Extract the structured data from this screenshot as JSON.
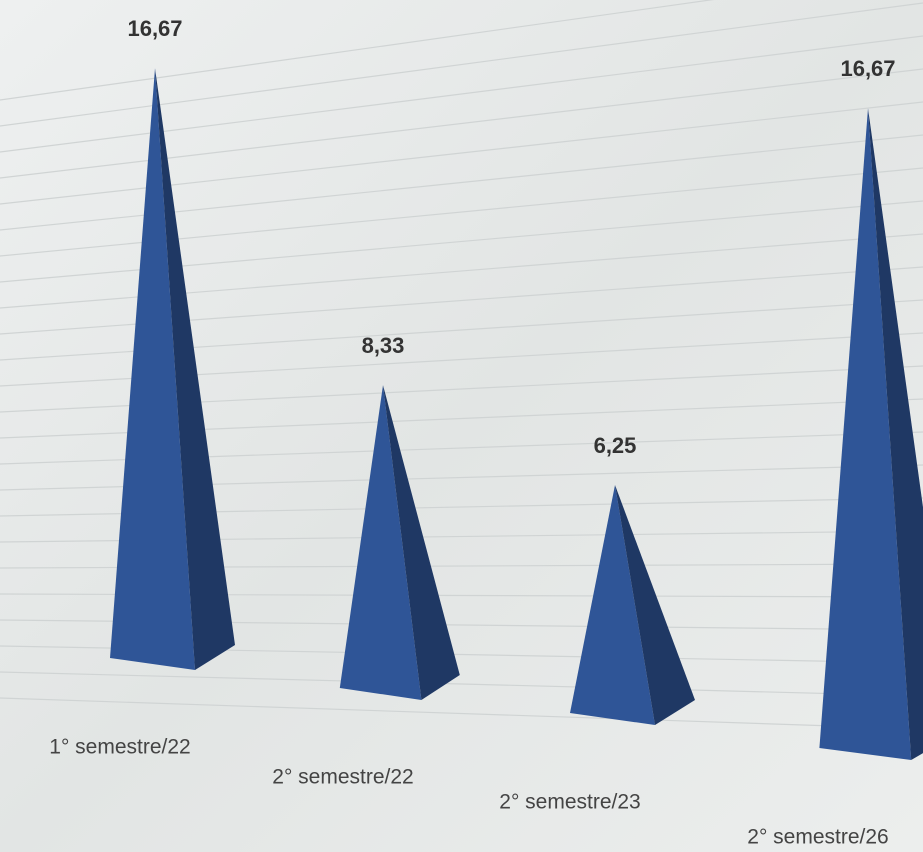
{
  "chart_data": {
    "type": "pyramid",
    "categories": [
      "1° semestre/22",
      "2° semestre/22",
      "2° semestre/23",
      "2° semestre/26"
    ],
    "values": [
      16.67,
      8.33,
      6.25,
      16.67
    ],
    "value_labels": [
      "16,67",
      "8,33",
      "6,25",
      "16,67"
    ],
    "color": "#2f5597"
  }
}
